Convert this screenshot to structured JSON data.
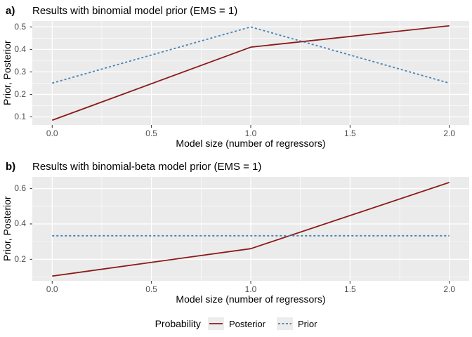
{
  "figure": {
    "legend": {
      "title": "Probability",
      "entries": [
        {
          "label": "Posterior",
          "style": "solid",
          "color": "#8B1A1A"
        },
        {
          "label": "Prior",
          "style": "dashed",
          "color": "#4682B4"
        }
      ]
    },
    "colors": {
      "panel_background": "#EBEBEB",
      "gridline": "#FFFFFF",
      "tick_mark": "#333333",
      "tick_label": "#4D4D4D",
      "posterior": "#8B1A1A",
      "prior": "#4682B4"
    }
  },
  "chart_data": [
    {
      "type": "line",
      "panel_tag": "a)",
      "title": "Results with binomial model prior (EMS = 1)",
      "xlabel": "Model size (number of regressors)",
      "ylabel": "Prior, Posterior",
      "x": [
        0,
        1,
        2
      ],
      "series": [
        {
          "name": "Posterior",
          "values": [
            0.085,
            0.41,
            0.505
          ],
          "color": "#8B1A1A",
          "linestyle": "solid"
        },
        {
          "name": "Prior",
          "values": [
            0.25,
            0.5,
            0.25
          ],
          "color": "#4682B4",
          "linestyle": "dashed"
        }
      ],
      "xlim": [
        -0.1,
        2.1
      ],
      "ylim": [
        0.064,
        0.526
      ],
      "x_major_ticks": [
        0,
        0.5,
        1,
        1.5,
        2
      ],
      "x_tick_labels": [
        "0.0",
        "0.5",
        "1.0",
        "1.5",
        "2.0"
      ],
      "y_major_ticks": [
        0.1,
        0.2,
        0.3,
        0.4,
        0.5
      ],
      "y_tick_labels": [
        "0.1",
        "0.2",
        "0.3",
        "0.4",
        "0.5"
      ],
      "grid": true,
      "legend_position": "bottom"
    },
    {
      "type": "line",
      "panel_tag": "b)",
      "title": "Results with binomial-beta model prior (EMS = 1)",
      "xlabel": "Model size (number of regressors)",
      "ylabel": "Prior, Posterior",
      "x": [
        0,
        1,
        2
      ],
      "series": [
        {
          "name": "Posterior",
          "values": [
            0.105,
            0.26,
            0.635
          ],
          "color": "#8B1A1A",
          "linestyle": "solid"
        },
        {
          "name": "Prior",
          "values": [
            0.333,
            0.333,
            0.333
          ],
          "color": "#4682B4",
          "linestyle": "dashed"
        }
      ],
      "xlim": [
        -0.1,
        2.1
      ],
      "ylim": [
        0.078,
        0.666
      ],
      "x_major_ticks": [
        0,
        0.5,
        1,
        1.5,
        2
      ],
      "x_tick_labels": [
        "0.0",
        "0.5",
        "1.0",
        "1.5",
        "2.0"
      ],
      "y_major_ticks": [
        0.2,
        0.4,
        0.6
      ],
      "y_tick_labels": [
        "0.2",
        "0.4",
        "0.6"
      ],
      "grid": true,
      "legend_position": "bottom"
    }
  ]
}
